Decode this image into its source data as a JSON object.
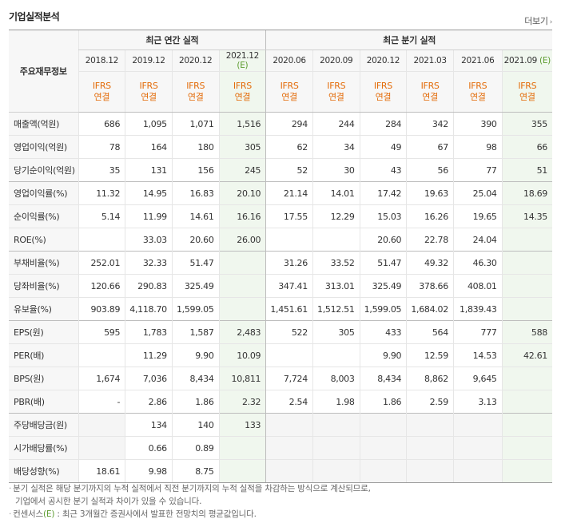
{
  "section_title": "기업실적분석",
  "more_label": "더보기",
  "header": {
    "row_label": "주요재무정보",
    "annual_group": "최근 연간 실적",
    "quarter_group": "최근 분기 실적",
    "periods": [
      {
        "base": "2018.12",
        "est": ""
      },
      {
        "base": "2019.12",
        "est": ""
      },
      {
        "base": "2020.12",
        "est": ""
      },
      {
        "base": "2021.12",
        "est": "(E)"
      },
      {
        "base": "2020.06",
        "est": ""
      },
      {
        "base": "2020.09",
        "est": ""
      },
      {
        "base": "2020.12",
        "est": ""
      },
      {
        "base": "2021.03",
        "est": ""
      },
      {
        "base": "2021.06",
        "est": ""
      },
      {
        "base": "2021.09",
        "est": "(E)"
      }
    ],
    "ifrs_line1": "IFRS",
    "ifrs_line2": "연결"
  },
  "rows": [
    {
      "label": "매출액(억원)",
      "values": [
        "686",
        "1,095",
        "1,071",
        "1,516",
        "294",
        "244",
        "284",
        "342",
        "390",
        "355"
      ]
    },
    {
      "label": "영업이익(억원)",
      "values": [
        "78",
        "164",
        "180",
        "305",
        "62",
        "34",
        "49",
        "67",
        "98",
        "66"
      ]
    },
    {
      "label": "당기순이익(억원)",
      "values": [
        "35",
        "131",
        "156",
        "245",
        "52",
        "30",
        "43",
        "56",
        "77",
        "51"
      ]
    },
    {
      "label": "영업이익률(%)",
      "values": [
        "11.32",
        "14.95",
        "16.83",
        "20.10",
        "21.14",
        "14.01",
        "17.42",
        "19.63",
        "25.04",
        "18.69"
      ]
    },
    {
      "label": "순이익률(%)",
      "values": [
        "5.14",
        "11.99",
        "14.61",
        "16.16",
        "17.55",
        "12.29",
        "15.03",
        "16.26",
        "19.65",
        "14.35"
      ]
    },
    {
      "label": "ROE(%)",
      "values": [
        "",
        "33.03",
        "20.60",
        "26.00",
        "",
        "",
        "20.60",
        "22.78",
        "24.04",
        ""
      ]
    },
    {
      "label": "부채비율(%)",
      "values": [
        "252.01",
        "32.33",
        "51.47",
        "",
        "31.26",
        "33.52",
        "51.47",
        "49.32",
        "46.30",
        ""
      ]
    },
    {
      "label": "당좌비율(%)",
      "values": [
        "120.66",
        "290.83",
        "325.49",
        "",
        "347.41",
        "313.01",
        "325.49",
        "378.66",
        "408.01",
        ""
      ]
    },
    {
      "label": "유보율(%)",
      "values": [
        "903.89",
        "4,118.70",
        "1,599.05",
        "",
        "1,451.61",
        "1,512.51",
        "1,599.05",
        "1,684.02",
        "1,839.43",
        ""
      ]
    },
    {
      "label": "EPS(원)",
      "values": [
        "595",
        "1,783",
        "1,587",
        "2,483",
        "522",
        "305",
        "433",
        "564",
        "777",
        "588"
      ]
    },
    {
      "label": "PER(배)",
      "values": [
        "",
        "11.29",
        "9.90",
        "10.09",
        "",
        "",
        "9.90",
        "12.59",
        "14.53",
        "42.61"
      ]
    },
    {
      "label": "BPS(원)",
      "values": [
        "1,674",
        "7,036",
        "8,434",
        "10,811",
        "7,724",
        "8,003",
        "8,434",
        "8,862",
        "9,645",
        ""
      ]
    },
    {
      "label": "PBR(배)",
      "values": [
        "-",
        "2.86",
        "1.86",
        "2.32",
        "2.54",
        "1.98",
        "1.86",
        "2.59",
        "3.13",
        ""
      ]
    },
    {
      "label": "주당배당금(원)",
      "values": [
        "",
        "134",
        "140",
        "133",
        "",
        "",
        "",
        "",
        "",
        ""
      ]
    },
    {
      "label": "시가배당률(%)",
      "values": [
        "",
        "0.66",
        "0.89",
        "",
        "",
        "",
        "",
        "",
        "",
        ""
      ]
    },
    {
      "label": "배당성향(%)",
      "values": [
        "18.61",
        "9.98",
        "8.75",
        "",
        "",
        "",
        "",
        "",
        "",
        ""
      ]
    }
  ],
  "notes": {
    "line1": "분기 실적은 해당 분기까지의 누적 실적에서 직전 분기까지의 누적 실적을 차감하는 방식으로 계산되므로,",
    "line2": "기업에서 공시한 분기 실적과 차이가 있을 수 있습니다.",
    "line3_prefix": "컨센서스",
    "line3_e": "(E)",
    "line3_rest": " : 최근 3개월간 증권사에서 발표한 전망치의 평균값입니다."
  }
}
